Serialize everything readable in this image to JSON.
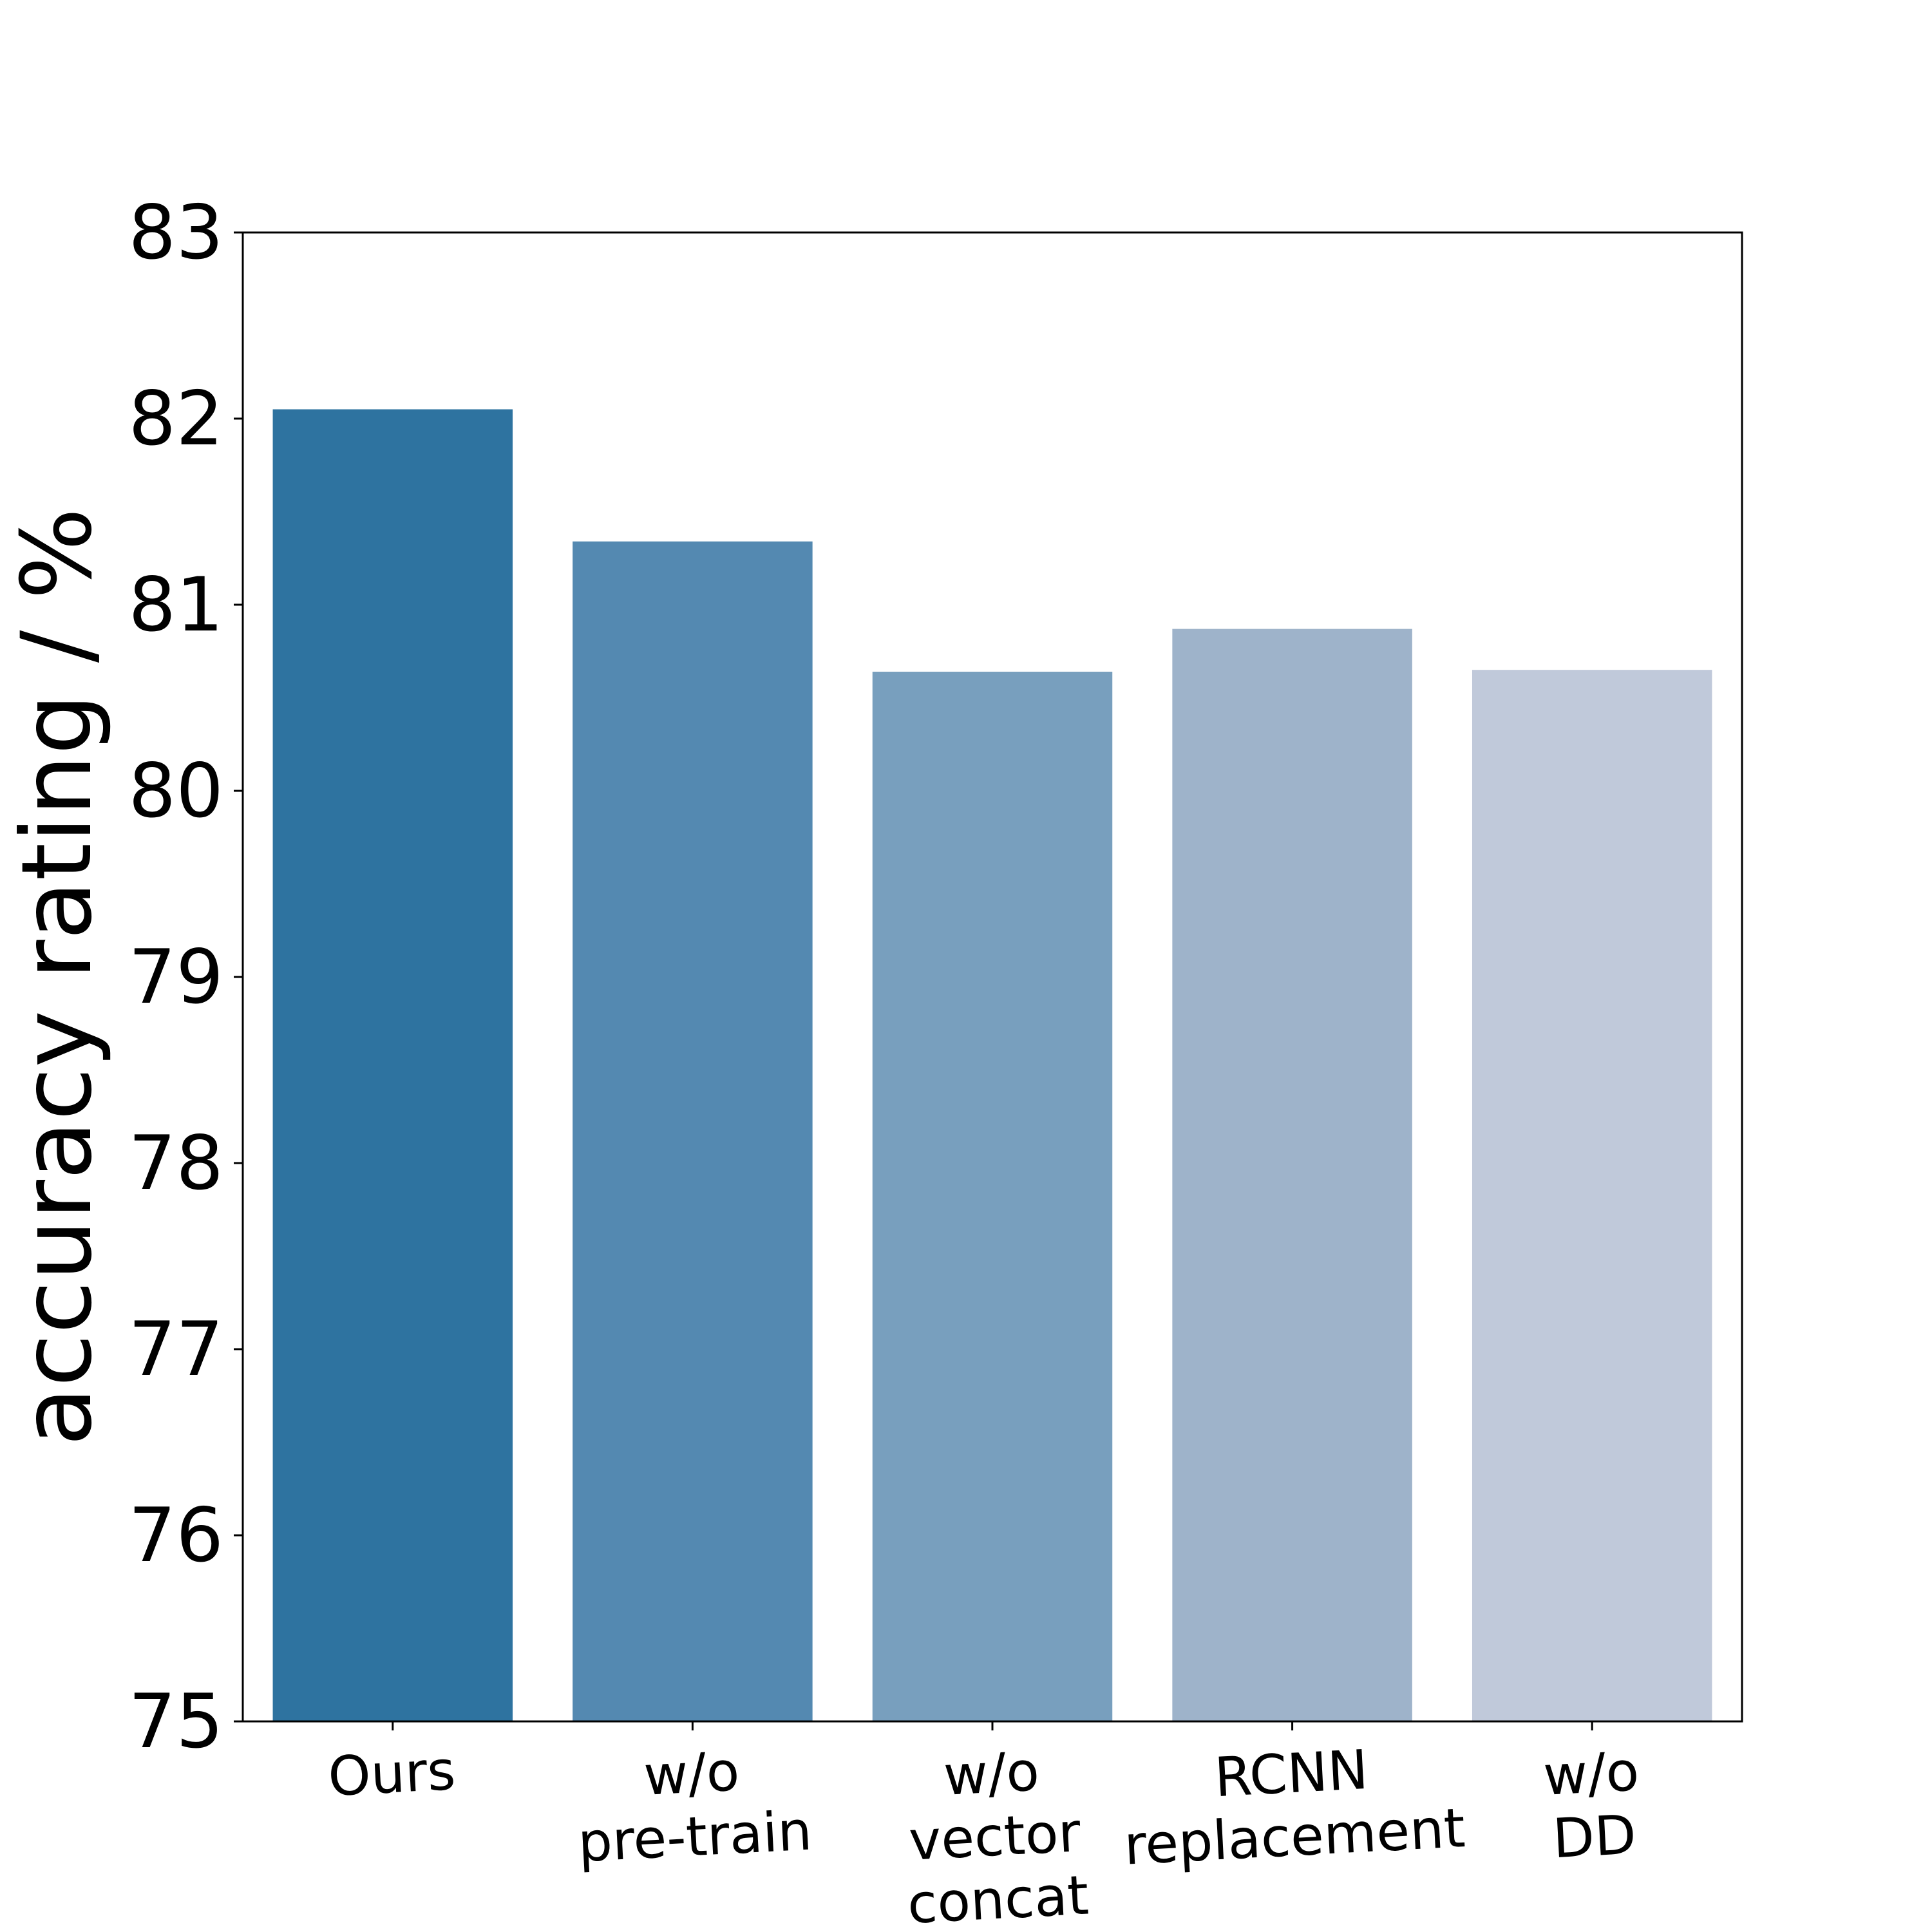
{
  "chart_data": {
    "type": "bar",
    "title": "",
    "xlabel": "",
    "ylabel": "accuracy rating / %",
    "categories": [
      [
        "Ours"
      ],
      [
        "w/o",
        "pre-train"
      ],
      [
        "w/o",
        "vector",
        "concat"
      ],
      [
        "RCNN",
        "replacement"
      ],
      [
        "w/o",
        "DD"
      ]
    ],
    "values": [
      82.05,
      81.34,
      80.64,
      80.87,
      80.65
    ],
    "colors": [
      "#2e73a0",
      "#5489b1",
      "#789fbe",
      "#9eb3ca",
      "#c0c9da"
    ],
    "ylim": [
      75,
      83
    ],
    "yticks": [
      "75",
      "76",
      "77",
      "78",
      "79",
      "80",
      "81",
      "82",
      "83"
    ],
    "grid": false,
    "legend": "none"
  }
}
